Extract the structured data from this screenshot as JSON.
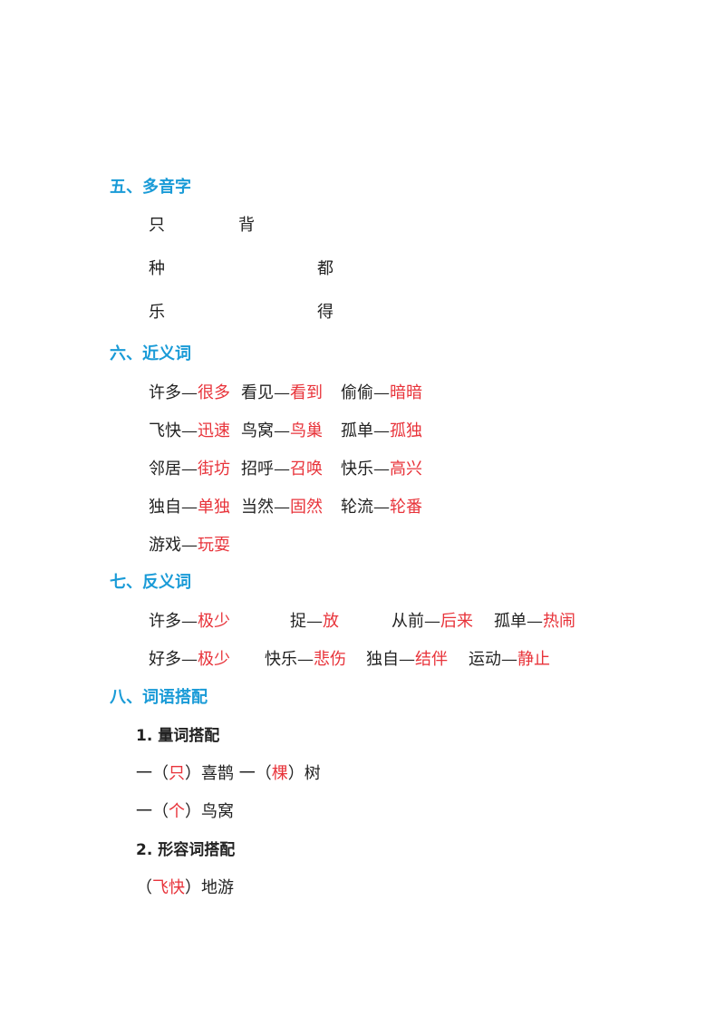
{
  "sec5": {
    "heading": "五、多音字",
    "chars": [
      "只",
      "背",
      "种",
      "都",
      "乐",
      "得"
    ]
  },
  "sec6": {
    "heading": "六、近义词",
    "pairs": [
      {
        "a": "许多—",
        "b": "很多"
      },
      {
        "a": "看见—",
        "b": "看到"
      },
      {
        "a": "偷偷—",
        "b": "暗暗"
      },
      {
        "a": "飞快—",
        "b": "迅速"
      },
      {
        "a": "鸟窝—",
        "b": "鸟巢"
      },
      {
        "a": "孤单—",
        "b": "孤独"
      },
      {
        "a": "邻居—",
        "b": "街坊"
      },
      {
        "a": "招呼—",
        "b": "召唤"
      },
      {
        "a": "快乐—",
        "b": "高兴"
      },
      {
        "a": "独自—",
        "b": "单独"
      },
      {
        "a": "当然—",
        "b": "固然"
      },
      {
        "a": "轮流—",
        "b": "轮番"
      },
      {
        "a": "游戏—",
        "b": "玩耍"
      }
    ]
  },
  "sec7": {
    "heading": "七、反义词",
    "pairs": [
      {
        "a": "许多—",
        "b": "极少"
      },
      {
        "a": "捉—",
        "b": "放"
      },
      {
        "a": "从前—",
        "b": "后来"
      },
      {
        "a": "孤单—",
        "b": "热闹"
      },
      {
        "a": "好多—",
        "b": "极少"
      },
      {
        "a": "快乐—",
        "b": "悲伤"
      },
      {
        "a": "独自—",
        "b": "结伴"
      },
      {
        "a": "运动—",
        "b": "静止"
      }
    ]
  },
  "sec8": {
    "heading": "八、词语搭配",
    "sub1": "1. 量词搭配",
    "line1": {
      "p1": "一（",
      "r1": "只",
      "p2": "）喜鹊  一（",
      "r2": "棵",
      "p3": "）树"
    },
    "line2": {
      "p1": "一（",
      "r1": "个",
      "p2": "）鸟窝"
    },
    "sub2": "2. 形容词搭配",
    "line3": {
      "p1": "（",
      "r1": "飞快",
      "p2": "）地游"
    }
  }
}
